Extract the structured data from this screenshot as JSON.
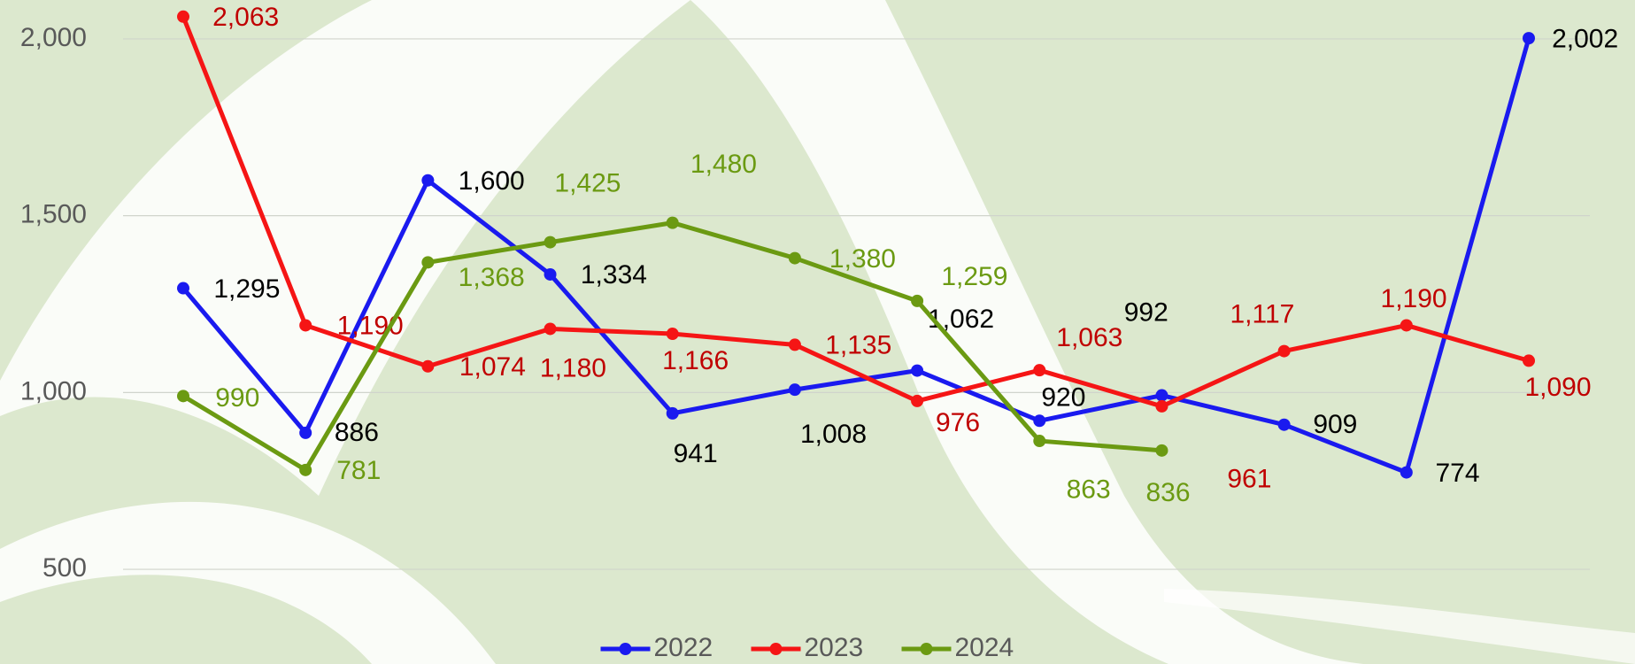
{
  "chart_data": {
    "type": "line",
    "categories": [
      null,
      null,
      null,
      null,
      null,
      null,
      null,
      null,
      null,
      null,
      null,
      null
    ],
    "series": [
      {
        "name": "2022",
        "color": "#1a1aef",
        "values": [
          1295,
          886,
          1600,
          1334,
          941,
          1008,
          1062,
          920,
          992,
          909,
          774,
          2002
        ],
        "value_labels": [
          "1,295",
          "886",
          "1,600",
          "1,334",
          "941",
          "1,008",
          "1,062",
          "920",
          "992",
          "909",
          "774",
          "2,002"
        ]
      },
      {
        "name": "2023",
        "color": "#f51515",
        "values": [
          2063,
          1190,
          1074,
          1180,
          1166,
          1135,
          976,
          1063,
          961,
          1117,
          1190,
          1090
        ],
        "value_labels": [
          "2,063",
          "1,190",
          "1,074",
          "1,180",
          "1,166",
          "1,135",
          "976",
          "1,063",
          "961",
          "1,117",
          "1,190",
          "1,090"
        ]
      },
      {
        "name": "2024",
        "color": "#6b9a12",
        "values": [
          990,
          781,
          1368,
          1425,
          1480,
          1380,
          1259,
          863,
          836,
          null,
          null,
          null
        ],
        "value_labels": [
          "990",
          "781",
          "1,368",
          "1,425",
          "1,480",
          "1,380",
          "1,259",
          "863",
          "836",
          null,
          null,
          null
        ]
      }
    ],
    "ylim": [
      420,
      2110
    ],
    "yticks": [
      {
        "value": 500,
        "label": "500"
      },
      {
        "value": 1000,
        "label": "1,000"
      },
      {
        "value": 1500,
        "label": "1,500"
      },
      {
        "value": 2000,
        "label": "2,000"
      }
    ],
    "grid": true,
    "legend": "bottom"
  }
}
